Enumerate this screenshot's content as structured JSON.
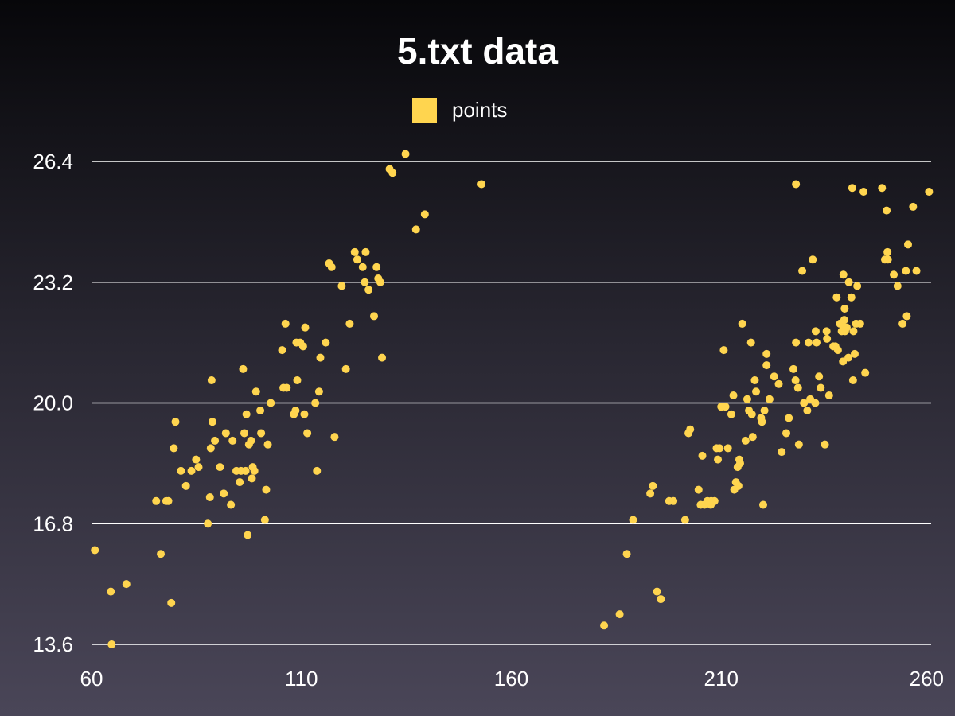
{
  "chart_data": {
    "type": "scatter",
    "title": "5.txt data",
    "xlabel": "",
    "ylabel": "",
    "xlim": [
      60,
      260
    ],
    "ylim": [
      13.6,
      26.4
    ],
    "x_ticks": [
      60,
      110,
      160,
      210,
      260
    ],
    "y_ticks": [
      13.6,
      16.8,
      20.0,
      23.2,
      26.4
    ],
    "y_tick_labels": [
      "13.6",
      "16.8",
      "20.0",
      "23.2",
      "26.4"
    ],
    "grid": "horizontal",
    "legend_position": "top-center",
    "series": [
      {
        "name": "points",
        "color": "#ffd54f",
        "points": [
          [
            60.8,
            16.1
          ],
          [
            64.6,
            15.0
          ],
          [
            68.3,
            15.2
          ],
          [
            64.8,
            13.6
          ],
          [
            75.4,
            17.4
          ],
          [
            76.5,
            16.0
          ],
          [
            77.8,
            17.4
          ],
          [
            78.3,
            17.4
          ],
          [
            79.0,
            14.7
          ],
          [
            79.6,
            18.8
          ],
          [
            80.0,
            19.5
          ],
          [
            81.3,
            18.2
          ],
          [
            82.5,
            17.8
          ],
          [
            83.8,
            18.2
          ],
          [
            84.9,
            18.5
          ],
          [
            85.5,
            18.3
          ],
          [
            87.7,
            16.8
          ],
          [
            88.2,
            17.5
          ],
          [
            88.4,
            18.8
          ],
          [
            88.6,
            20.6
          ],
          [
            88.8,
            19.5
          ],
          [
            89.4,
            19.0
          ],
          [
            90.6,
            18.3
          ],
          [
            91.5,
            17.6
          ],
          [
            92.0,
            19.2
          ],
          [
            93.2,
            17.3
          ],
          [
            93.6,
            19.0
          ],
          [
            94.5,
            18.2
          ],
          [
            95.3,
            17.9
          ],
          [
            95.6,
            18.2
          ],
          [
            96.1,
            20.9
          ],
          [
            96.4,
            19.2
          ],
          [
            96.7,
            18.2
          ],
          [
            96.9,
            19.7
          ],
          [
            97.2,
            16.5
          ],
          [
            97.5,
            18.9
          ],
          [
            98.0,
            19.0
          ],
          [
            98.2,
            18.0
          ],
          [
            98.4,
            18.3
          ],
          [
            98.8,
            18.2
          ],
          [
            99.2,
            20.3
          ],
          [
            100.2,
            19.8
          ],
          [
            100.4,
            19.2
          ],
          [
            101.3,
            16.9
          ],
          [
            101.6,
            17.7
          ],
          [
            102.0,
            18.9
          ],
          [
            102.7,
            20.0
          ],
          [
            105.4,
            21.4
          ],
          [
            105.7,
            20.4
          ],
          [
            106.2,
            22.1
          ],
          [
            106.5,
            20.4
          ],
          [
            108.2,
            19.7
          ],
          [
            108.6,
            19.8
          ],
          [
            108.8,
            21.6
          ],
          [
            109.0,
            20.6
          ],
          [
            109.7,
            21.6
          ],
          [
            110.4,
            21.5
          ],
          [
            110.7,
            19.7
          ],
          [
            110.9,
            22.0
          ],
          [
            111.4,
            19.2
          ],
          [
            113.3,
            20.0
          ],
          [
            113.7,
            18.2
          ],
          [
            114.2,
            20.3
          ],
          [
            114.5,
            21.2
          ],
          [
            115.8,
            21.6
          ],
          [
            116.6,
            23.7
          ],
          [
            117.2,
            23.6
          ],
          [
            117.9,
            19.1
          ],
          [
            119.6,
            23.1
          ],
          [
            120.6,
            20.9
          ],
          [
            121.5,
            22.1
          ],
          [
            122.7,
            24.0
          ],
          [
            123.3,
            23.8
          ],
          [
            124.6,
            23.6
          ],
          [
            125.1,
            23.2
          ],
          [
            125.3,
            24.0
          ],
          [
            126.0,
            23.0
          ],
          [
            127.3,
            22.3
          ],
          [
            127.9,
            23.6
          ],
          [
            128.3,
            23.3
          ],
          [
            128.8,
            23.2
          ],
          [
            129.2,
            21.2
          ],
          [
            131.0,
            26.2
          ],
          [
            131.7,
            26.1
          ],
          [
            134.8,
            26.6
          ],
          [
            137.3,
            24.6
          ],
          [
            139.4,
            25.0
          ],
          [
            152.9,
            25.8
          ],
          [
            182.1,
            14.1
          ],
          [
            185.8,
            14.4
          ],
          [
            187.5,
            16.0
          ],
          [
            189.0,
            16.9
          ],
          [
            193.1,
            17.6
          ],
          [
            193.7,
            17.8
          ],
          [
            194.7,
            15.0
          ],
          [
            195.6,
            14.8
          ],
          [
            197.6,
            17.4
          ],
          [
            198.6,
            17.4
          ],
          [
            201.4,
            16.9
          ],
          [
            202.2,
            19.2
          ],
          [
            202.6,
            19.3
          ],
          [
            204.6,
            17.7
          ],
          [
            205.1,
            17.3
          ],
          [
            205.5,
            18.6
          ],
          [
            206.0,
            17.3
          ],
          [
            206.7,
            17.4
          ],
          [
            207.5,
            17.3
          ],
          [
            207.6,
            17.4
          ],
          [
            208.4,
            17.4
          ],
          [
            208.9,
            18.8
          ],
          [
            209.2,
            18.5
          ],
          [
            209.6,
            18.8
          ],
          [
            210.0,
            19.9
          ],
          [
            210.6,
            21.4
          ],
          [
            211.0,
            19.9
          ],
          [
            211.6,
            18.8
          ],
          [
            212.4,
            19.7
          ],
          [
            212.9,
            20.2
          ],
          [
            213.1,
            17.7
          ],
          [
            213.5,
            17.9
          ],
          [
            213.9,
            18.3
          ],
          [
            214.1,
            17.8
          ],
          [
            214.3,
            18.5
          ],
          [
            214.5,
            18.4
          ],
          [
            215.0,
            22.1
          ],
          [
            215.8,
            19.0
          ],
          [
            216.2,
            20.1
          ],
          [
            216.6,
            19.8
          ],
          [
            217.1,
            21.6
          ],
          [
            217.3,
            19.7
          ],
          [
            217.5,
            19.1
          ],
          [
            218.0,
            20.6
          ],
          [
            218.3,
            20.3
          ],
          [
            219.5,
            19.6
          ],
          [
            219.7,
            19.5
          ],
          [
            220.0,
            17.3
          ],
          [
            220.3,
            19.8
          ],
          [
            220.8,
            21.3
          ],
          [
            220.8,
            21.0
          ],
          [
            221.5,
            20.1
          ],
          [
            222.6,
            20.7
          ],
          [
            223.7,
            20.5
          ],
          [
            224.4,
            18.7
          ],
          [
            225.5,
            19.2
          ],
          [
            226.1,
            19.6
          ],
          [
            227.2,
            20.9
          ],
          [
            227.7,
            20.6
          ],
          [
            227.8,
            21.6
          ],
          [
            227.8,
            25.8
          ],
          [
            228.3,
            20.4
          ],
          [
            228.5,
            18.9
          ],
          [
            229.3,
            23.5
          ],
          [
            229.7,
            20.0
          ],
          [
            230.5,
            19.8
          ],
          [
            230.8,
            21.6
          ],
          [
            231.2,
            20.1
          ],
          [
            231.8,
            23.8
          ],
          [
            232.4,
            20.0
          ],
          [
            232.5,
            21.9
          ],
          [
            232.7,
            21.6
          ],
          [
            233.3,
            20.7
          ],
          [
            233.7,
            20.4
          ],
          [
            234.7,
            18.9
          ],
          [
            235.1,
            21.9
          ],
          [
            235.2,
            21.7
          ],
          [
            235.7,
            20.2
          ],
          [
            236.7,
            21.5
          ],
          [
            237.2,
            21.5
          ],
          [
            237.5,
            22.8
          ],
          [
            237.8,
            21.4
          ],
          [
            238.3,
            22.1
          ],
          [
            238.7,
            21.9
          ],
          [
            239.0,
            21.1
          ],
          [
            239.1,
            23.4
          ],
          [
            239.3,
            22.2
          ],
          [
            239.3,
            22.0
          ],
          [
            239.4,
            22.5
          ],
          [
            239.5,
            21.9
          ],
          [
            239.9,
            22.0
          ],
          [
            240.3,
            21.2
          ],
          [
            240.4,
            23.2
          ],
          [
            241.0,
            22.8
          ],
          [
            241.2,
            25.7
          ],
          [
            241.4,
            20.6
          ],
          [
            241.5,
            21.9
          ],
          [
            241.8,
            21.3
          ],
          [
            242.1,
            22.1
          ],
          [
            242.4,
            23.1
          ],
          [
            243.1,
            22.1
          ],
          [
            243.9,
            25.6
          ],
          [
            244.3,
            20.8
          ],
          [
            248.3,
            25.7
          ],
          [
            249.0,
            23.8
          ],
          [
            249.4,
            25.1
          ],
          [
            249.6,
            24.0
          ],
          [
            249.7,
            23.8
          ],
          [
            251.1,
            23.4
          ],
          [
            252.0,
            23.1
          ],
          [
            253.2,
            22.1
          ],
          [
            254.0,
            23.5
          ],
          [
            254.2,
            22.3
          ],
          [
            254.5,
            24.2
          ],
          [
            255.7,
            25.2
          ],
          [
            256.5,
            23.5
          ],
          [
            259.5,
            25.6
          ]
        ]
      }
    ]
  }
}
